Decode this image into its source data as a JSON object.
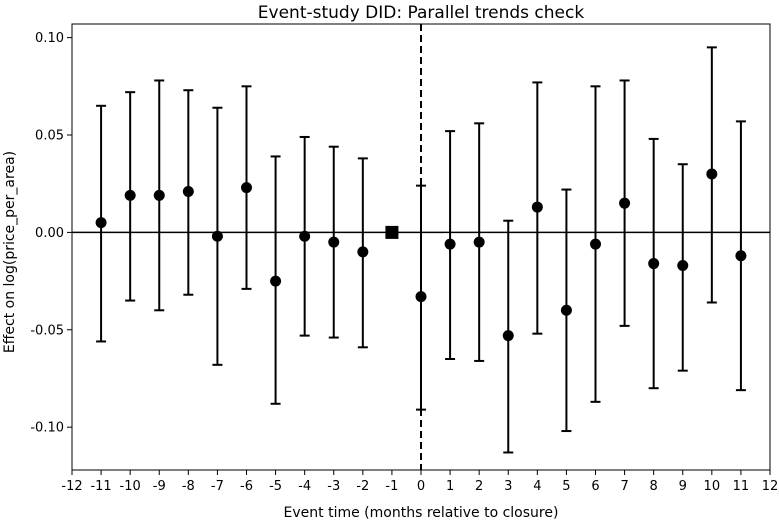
{
  "chart_data": {
    "type": "scatter",
    "title": "Event-study DID: Parallel trends check",
    "xlabel": "Event time (months relative to closure)",
    "ylabel": "Effect on log(price_per_area)",
    "xlim": [
      -12,
      12
    ],
    "ylim": [
      -0.122,
      0.107
    ],
    "x_ticks": [
      -12,
      -11,
      -10,
      -9,
      -8,
      -7,
      -6,
      -5,
      -4,
      -3,
      -2,
      -1,
      0,
      1,
      2,
      3,
      4,
      5,
      6,
      7,
      8,
      9,
      10,
      11,
      12
    ],
    "x_tick_labels": [
      "-12",
      "-11",
      "-10",
      "-9",
      "-8",
      "-7",
      "-6",
      "-5",
      "-4",
      "-3",
      "-2",
      "-1",
      "0",
      "1",
      "2",
      "3",
      "4",
      "5",
      "6",
      "7",
      "8",
      "9",
      "10",
      "11",
      "12"
    ],
    "y_ticks": [
      -0.1,
      -0.05,
      0.0,
      0.05,
      0.1
    ],
    "y_tick_labels": [
      "-0.10",
      "-0.05",
      "0.00",
      "0.05",
      "0.10"
    ],
    "reference_lines": {
      "horizontal_y": 0,
      "vertical_x": 0,
      "vertical_style": "dashed"
    },
    "reference_period": {
      "x": -1,
      "y": 0.0,
      "marker": "square"
    },
    "marker_color": "#000000",
    "points": [
      {
        "x": -11,
        "y": 0.005,
        "lo": -0.056,
        "hi": 0.065
      },
      {
        "x": -10,
        "y": 0.019,
        "lo": -0.035,
        "hi": 0.072
      },
      {
        "x": -9,
        "y": 0.019,
        "lo": -0.04,
        "hi": 0.078
      },
      {
        "x": -8,
        "y": 0.021,
        "lo": -0.032,
        "hi": 0.073
      },
      {
        "x": -7,
        "y": -0.002,
        "lo": -0.068,
        "hi": 0.064
      },
      {
        "x": -6,
        "y": 0.023,
        "lo": -0.029,
        "hi": 0.075
      },
      {
        "x": -5,
        "y": -0.025,
        "lo": -0.088,
        "hi": 0.039
      },
      {
        "x": -4,
        "y": -0.002,
        "lo": -0.053,
        "hi": 0.049
      },
      {
        "x": -3,
        "y": -0.005,
        "lo": -0.054,
        "hi": 0.044
      },
      {
        "x": -2,
        "y": -0.01,
        "lo": -0.059,
        "hi": 0.038
      },
      {
        "x": 0,
        "y": -0.033,
        "lo": -0.091,
        "hi": 0.024
      },
      {
        "x": 1,
        "y": -0.006,
        "lo": -0.065,
        "hi": 0.052
      },
      {
        "x": 2,
        "y": -0.005,
        "lo": -0.066,
        "hi": 0.056
      },
      {
        "x": 3,
        "y": -0.053,
        "lo": -0.113,
        "hi": 0.006
      },
      {
        "x": 4,
        "y": 0.013,
        "lo": -0.052,
        "hi": 0.077
      },
      {
        "x": 5,
        "y": -0.04,
        "lo": -0.102,
        "hi": 0.022
      },
      {
        "x": 6,
        "y": -0.006,
        "lo": -0.087,
        "hi": 0.075
      },
      {
        "x": 7,
        "y": 0.015,
        "lo": -0.048,
        "hi": 0.078
      },
      {
        "x": 8,
        "y": -0.016,
        "lo": -0.08,
        "hi": 0.048
      },
      {
        "x": 9,
        "y": -0.017,
        "lo": -0.071,
        "hi": 0.035
      },
      {
        "x": 10,
        "y": 0.03,
        "lo": -0.036,
        "hi": 0.095
      },
      {
        "x": 11,
        "y": -0.012,
        "lo": -0.081,
        "hi": 0.057
      }
    ]
  }
}
